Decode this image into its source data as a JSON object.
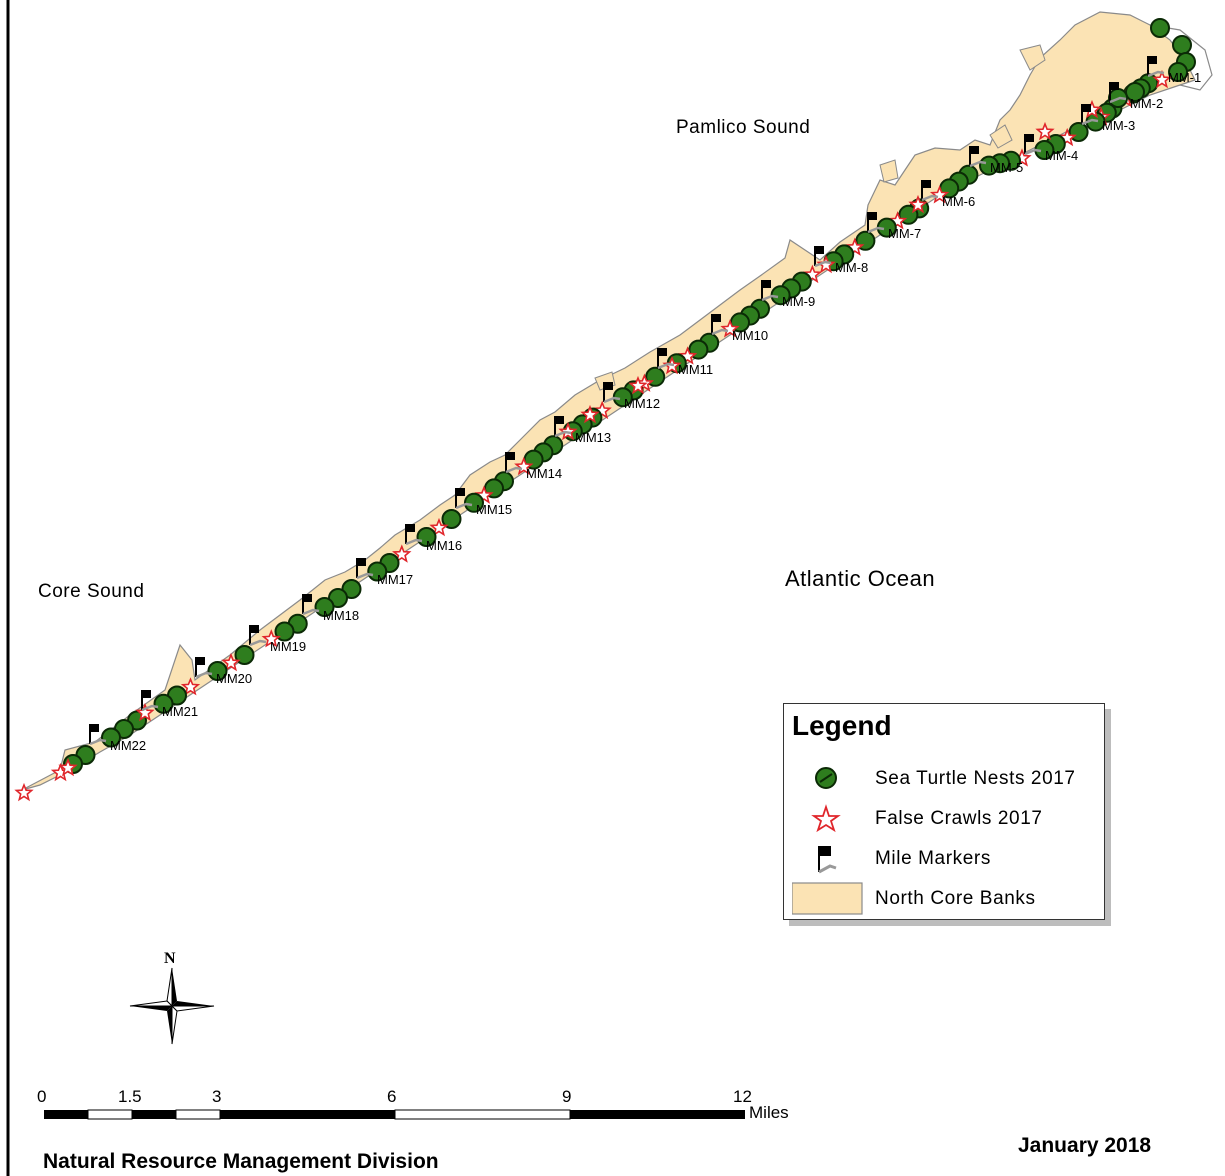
{
  "water_labels": {
    "pamlico": "Pamlico Sound",
    "core": "Core Sound",
    "atlantic": "Atlantic Ocean"
  },
  "mile_markers": [
    "MM-1",
    "MM-2",
    "MM-3",
    "MM-4",
    "MM-5",
    "MM-6",
    "MM-7",
    "MM-8",
    "MM-9",
    "MM10",
    "MM11",
    "MM12",
    "MM13",
    "MM14",
    "MM15",
    "MM16",
    "MM17",
    "MM18",
    "MM19",
    "MM20",
    "MM21",
    "MM22"
  ],
  "legend": {
    "title": "Legend",
    "items": [
      {
        "label": "Sea Turtle Nests 2017",
        "icon": "nest-icon",
        "color": "#2e7d1e"
      },
      {
        "label": "False Crawls 2017",
        "icon": "star-icon",
        "color": "#e0262b"
      },
      {
        "label": "Mile Markers",
        "icon": "flag-icon",
        "color": "#000000"
      },
      {
        "label": "North Core Banks",
        "icon": "land-swatch",
        "color": "#fbe3b4"
      }
    ]
  },
  "north_arrow": "N",
  "scale_bar": {
    "ticks": [
      "0",
      "1.5",
      "3",
      "6",
      "9",
      "12"
    ],
    "unit": "Miles"
  },
  "footer": {
    "division": "Natural Resource Management Division",
    "date": "January 2018"
  },
  "colors": {
    "land": "#fbe3b4",
    "land_outline": "#8a8a8a",
    "nest": "#2e7d1e",
    "crawl": "#e0262b"
  }
}
